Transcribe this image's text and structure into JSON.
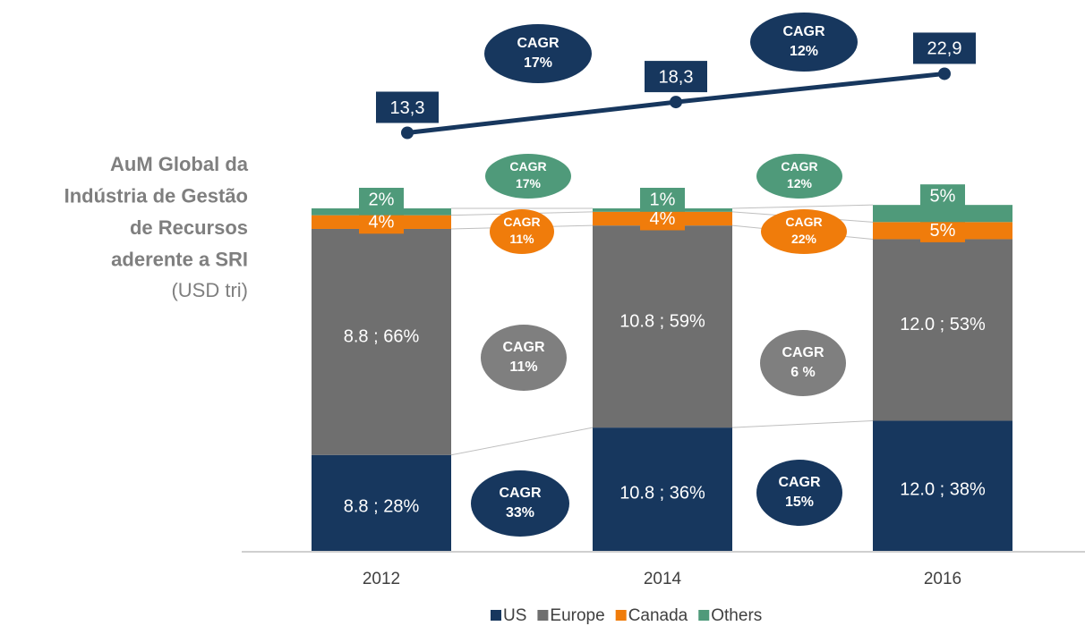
{
  "chart_data": {
    "type": "bar",
    "stacked": true,
    "title": [
      "AuM Global da",
      "Indústria de Gestão",
      "de Recursos",
      "aderente a SRI"
    ],
    "subtitle": "(USD tri)",
    "categories": [
      "2012",
      "2014",
      "2016"
    ],
    "series": [
      {
        "name": "US",
        "color": "#17375e",
        "values": [
          28,
          36,
          38
        ],
        "value_labels": [
          "8.8 ; 28%",
          "10.8 ; 36%",
          "12.0 ; 38%"
        ]
      },
      {
        "name": "Europe",
        "color": "#6f6f6f",
        "values": [
          66,
          59,
          53
        ],
        "value_labels": [
          "8.8 ; 66%",
          "10.8 ; 59%",
          "12.0 ; 53%"
        ]
      },
      {
        "name": "Canada",
        "color": "#f07c0b",
        "values": [
          4,
          4,
          5
        ],
        "value_labels": [
          "4%",
          "4%",
          "5%"
        ]
      },
      {
        "name": "Others",
        "color": "#4f9a7a",
        "values": [
          2,
          1,
          5
        ],
        "value_labels": [
          "2%",
          "1%",
          "5%"
        ]
      }
    ],
    "line": {
      "color": "#17375e",
      "axis": "y2",
      "values": [
        13.3,
        18.3,
        22.9
      ],
      "value_labels": [
        "13,3",
        "18,3",
        "22,9"
      ]
    },
    "ylim": [
      0,
      100
    ],
    "y2lim": [
      0,
      25
    ],
    "legend": "bottom",
    "annotations": [
      {
        "lines": [
          "CAGR",
          "17%"
        ],
        "color": "#17375e"
      },
      {
        "lines": [
          "CAGR",
          "12%"
        ],
        "color": "#17375e"
      },
      {
        "lines": [
          "CAGR",
          "17%"
        ],
        "color": "#4f9a7a"
      },
      {
        "lines": [
          "CAGR",
          "12%"
        ],
        "color": "#4f9a7a"
      },
      {
        "lines": [
          "CAGR",
          "11%"
        ],
        "color": "#f07c0b"
      },
      {
        "lines": [
          "CAGR",
          "22%"
        ],
        "color": "#f07c0b"
      },
      {
        "lines": [
          "CAGR",
          "11%"
        ],
        "color": "#7f7f7f"
      },
      {
        "lines": [
          "CAGR",
          "6 %"
        ],
        "color": "#7f7f7f"
      },
      {
        "lines": [
          "CAGR",
          "33%"
        ],
        "color": "#17375e"
      },
      {
        "lines": [
          "CAGR",
          "15%"
        ],
        "color": "#17375e"
      }
    ]
  }
}
